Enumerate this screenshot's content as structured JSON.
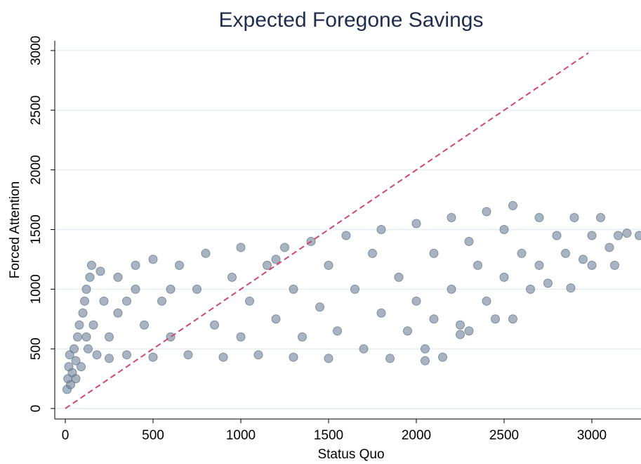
{
  "chart_data": {
    "type": "scatter",
    "title": "Expected Foregone Savings",
    "x_label": "Status Quo",
    "y_label": "Forced Attention",
    "color": "#6f8299",
    "reference_line": {
      "x": [
        0,
        2980
      ],
      "y": [
        0,
        2980
      ],
      "color": "#d2476e"
    },
    "xlim": [
      -60,
      3280
    ],
    "ylim": [
      -88,
      3082
    ],
    "xticks": [
      0,
      500,
      1000,
      1500,
      2000,
      2500,
      3000
    ],
    "yticks": [
      0,
      500,
      1000,
      1500,
      2000,
      2500,
      3000
    ],
    "grid": true,
    "x": [
      10,
      15,
      20,
      25,
      30,
      40,
      50,
      60,
      70,
      80,
      90,
      100,
      110,
      120,
      130,
      140,
      150,
      160,
      180,
      200,
      220,
      250,
      250,
      300,
      300,
      350,
      400,
      400,
      450,
      500,
      500,
      550,
      600,
      650,
      700,
      750,
      800,
      850,
      900,
      950,
      1000,
      1000,
      1050,
      1100,
      1150,
      1200,
      1250,
      1300,
      1300,
      1350,
      1400,
      1450,
      1500,
      1500,
      1550,
      1600,
      1650,
      1700,
      1750,
      1800,
      1800,
      1850,
      1900,
      1950,
      2000,
      2000,
      2050,
      2100,
      2100,
      2150,
      2200,
      2200,
      2250,
      2300,
      2300,
      2350,
      2400,
      2400,
      2450,
      2500,
      2500,
      2550,
      2550,
      2600,
      2650,
      2700,
      2700,
      2750,
      2800,
      2850,
      2880,
      2900,
      2950,
      3000,
      3000,
      3050,
      3100,
      3130,
      3150,
      3200,
      3270,
      2250,
      2050,
      1200,
      600,
      350,
      120,
      60
    ],
    "values": [
      160,
      250,
      350,
      450,
      200,
      300,
      500,
      400,
      600,
      700,
      350,
      800,
      900,
      1000,
      500,
      1100,
      1200,
      700,
      450,
      1150,
      900,
      600,
      420,
      1100,
      800,
      450,
      1000,
      1200,
      700,
      430,
      1250,
      900,
      600,
      1200,
      450,
      1000,
      1300,
      700,
      430,
      1100,
      1350,
      600,
      900,
      450,
      1200,
      750,
      1350,
      1000,
      430,
      600,
      1400,
      850,
      1200,
      420,
      650,
      1450,
      1000,
      500,
      1300,
      800,
      1500,
      420,
      1100,
      650,
      1550,
      900,
      500,
      1300,
      750,
      430,
      1600,
      1000,
      700,
      1400,
      650,
      1200,
      1650,
      900,
      750,
      1500,
      1100,
      750,
      1700,
      1300,
      1000,
      1600,
      1200,
      1050,
      1450,
      1300,
      1010,
      1600,
      1250,
      1450,
      1200,
      1600,
      1350,
      1200,
      1450,
      1470,
      1450,
      620,
      400,
      1250,
      1000,
      900,
      600,
      250
    ]
  }
}
